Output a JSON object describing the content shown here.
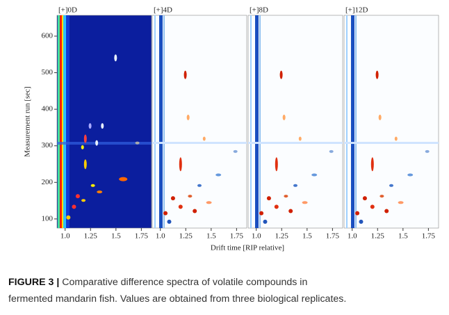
{
  "figure": {
    "y_axis_label": "Measurement run [sec]",
    "x_axis_label": "Drift time [RIP relative]",
    "ylim": [
      75,
      657
    ],
    "yticks": [
      100,
      200,
      300,
      400,
      500,
      600
    ],
    "panels": [
      {
        "title": "[+]0D",
        "xlim": [
          0.92,
          1.85
        ],
        "xticks": [
          {
            "value": 1,
            "label": "1.0"
          },
          1.25,
          1.5,
          1.75
        ]
      },
      {
        "title": "[+]4D",
        "xlim": [
          0.92,
          1.85
        ],
        "xticks": [
          {
            "value": 1,
            "label": "1.0"
          },
          1.25,
          1.5,
          1.75
        ]
      },
      {
        "title": "[+]8D",
        "xlim": [
          0.92,
          1.85
        ],
        "xticks": [
          {
            "value": 1,
            "label": "1.0"
          },
          1.25,
          1.5,
          1.75
        ]
      },
      {
        "title": "[+]12D",
        "xlim": [
          0.92,
          1.85
        ],
        "xticks": [
          {
            "value": 1,
            "label": "1.0"
          },
          1.25,
          1.5,
          1.75
        ]
      }
    ],
    "caption": {
      "label": "FIGURE 3 |",
      "lines": [
        "Comparative difference spectra of volatile compounds in",
        "fermented mandarin fish. Values are obtained from three biological replicates."
      ]
    }
  }
}
